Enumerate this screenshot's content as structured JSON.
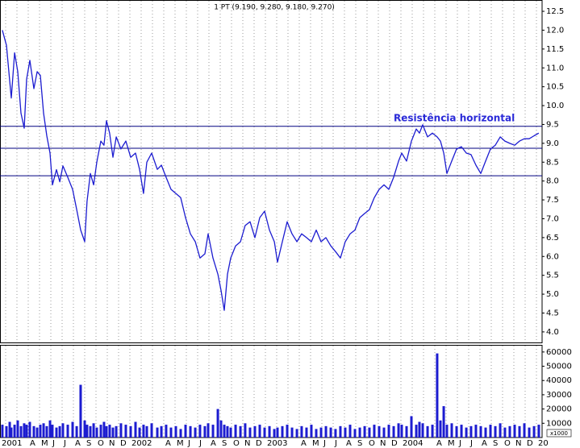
{
  "chart_data": [
    {
      "type": "line",
      "title": "1 PT (9.190, 9.280, 9.180, 9.270)",
      "color": "#1c1cd0",
      "x": [
        0.71,
        1.07,
        1.36,
        1.5,
        1.79,
        2.07,
        2.36,
        2.64,
        2.86,
        3.14,
        3.5,
        3.79,
        4.07,
        4.36,
        4.64,
        4.93,
        5.14,
        5.5,
        5.79,
        6.07,
        6.5,
        6.93,
        7.29,
        7.64,
        8.0,
        8.21,
        8.5,
        8.79,
        9.07,
        9.43,
        9.71,
        9.93,
        10.21,
        10.5,
        10.79,
        11.21,
        11.64,
        12.07,
        12.5,
        12.86,
        13.21,
        13.5,
        13.93,
        14.43,
        14.79,
        15.21,
        15.64,
        16.07,
        16.5,
        16.93,
        17.36,
        17.79,
        18.21,
        18.64,
        18.93,
        19.36,
        19.79,
        20.07,
        20.36,
        20.64,
        20.93,
        21.36,
        21.79,
        22.21,
        22.64,
        23.07,
        23.5,
        23.93,
        24.36,
        24.79,
        25.07,
        25.5,
        25.93,
        26.36,
        26.79,
        27.21,
        27.64,
        28.07,
        28.5,
        28.93,
        29.36,
        29.79,
        30.21,
        30.64,
        31.07,
        31.5,
        31.93,
        32.36,
        32.79,
        33.21,
        33.64,
        34.07,
        34.5,
        34.93,
        35.36,
        35.79,
        36.07,
        36.5,
        36.93,
        37.36,
        37.64,
        37.93,
        38.36,
        38.79,
        39.21,
        39.5,
        39.79,
        40.07,
        40.5,
        40.93,
        41.36,
        41.79,
        42.21,
        42.64,
        43.07,
        43.5,
        43.93,
        44.36,
        44.79,
        45.21,
        45.64,
        46.07,
        46.5,
        46.93,
        47.36,
        47.79,
        48.21
      ],
      "values": [
        12.0,
        11.6,
        10.66,
        10.2,
        11.4,
        10.9,
        9.8,
        9.4,
        10.7,
        11.2,
        10.45,
        10.9,
        10.8,
        9.8,
        9.2,
        8.74,
        7.9,
        8.3,
        7.98,
        8.4,
        8.1,
        7.78,
        7.24,
        6.7,
        6.39,
        7.46,
        8.2,
        7.9,
        8.5,
        9.06,
        8.95,
        9.6,
        9.27,
        8.63,
        9.17,
        8.85,
        9.06,
        8.63,
        8.74,
        8.31,
        7.67,
        8.5,
        8.74,
        8.31,
        8.42,
        8.1,
        7.78,
        7.67,
        7.56,
        7.03,
        6.6,
        6.39,
        5.96,
        6.07,
        6.6,
        5.96,
        5.53,
        5.1,
        4.57,
        5.53,
        5.96,
        6.28,
        6.39,
        6.82,
        6.92,
        6.5,
        7.03,
        7.2,
        6.7,
        6.39,
        5.85,
        6.39,
        6.92,
        6.6,
        6.39,
        6.6,
        6.5,
        6.39,
        6.7,
        6.39,
        6.5,
        6.28,
        6.13,
        5.96,
        6.39,
        6.6,
        6.7,
        7.03,
        7.14,
        7.24,
        7.56,
        7.78,
        7.9,
        7.78,
        8.1,
        8.53,
        8.74,
        8.53,
        9.06,
        9.38,
        9.27,
        9.49,
        9.17,
        9.27,
        9.17,
        9.06,
        8.74,
        8.2,
        8.53,
        8.85,
        8.91,
        8.74,
        8.7,
        8.42,
        8.2,
        8.53,
        8.85,
        8.95,
        9.17,
        9.06,
        9.0,
        8.95,
        9.06,
        9.12,
        9.12,
        9.2,
        9.27
      ],
      "xlim": [
        0.5,
        48.5
      ],
      "ylim": [
        3.72,
        12.8
      ],
      "yticks": [
        {
          "value": 4,
          "label": "4.0"
        },
        4.5,
        {
          "value": 5,
          "label": "5.0"
        },
        5.5,
        {
          "value": 6,
          "label": "6.0"
        },
        6.5,
        {
          "value": 7,
          "label": "7.0"
        },
        7.5,
        {
          "value": 8,
          "label": "8.0"
        },
        8.5,
        {
          "value": 9,
          "label": "9.0"
        },
        9.5,
        {
          "value": 10,
          "label": "10.0"
        },
        10.5,
        {
          "value": 11,
          "label": "11.0"
        },
        11.5,
        {
          "value": 12,
          "label": "12.0"
        },
        12.5
      ],
      "hlines": [
        9.45,
        8.87,
        8.14
      ],
      "hline_color": "#000080",
      "annotation": "Resistência horizontal",
      "annotation_color": "#2a2ad8"
    },
    {
      "type": "bar",
      "color": "#1c1cd0",
      "axis_note": "x1000",
      "x": [
        0.71,
        1.07,
        1.36,
        1.5,
        1.79,
        2.07,
        2.36,
        2.64,
        2.86,
        3.14,
        3.5,
        3.79,
        4.07,
        4.36,
        4.64,
        4.93,
        5.14,
        5.5,
        5.79,
        6.07,
        6.5,
        6.93,
        7.29,
        7.64,
        8.0,
        8.21,
        8.5,
        8.79,
        9.07,
        9.43,
        9.71,
        9.93,
        10.21,
        10.5,
        10.79,
        11.21,
        11.64,
        12.07,
        12.5,
        12.86,
        13.21,
        13.5,
        13.93,
        14.43,
        14.79,
        15.21,
        15.64,
        16.07,
        16.5,
        16.93,
        17.36,
        17.79,
        18.21,
        18.64,
        18.93,
        19.36,
        19.79,
        20.07,
        20.36,
        20.64,
        20.93,
        21.36,
        21.79,
        22.21,
        22.64,
        23.07,
        23.5,
        23.93,
        24.36,
        24.79,
        25.07,
        25.5,
        25.93,
        26.36,
        26.79,
        27.21,
        27.64,
        28.07,
        28.5,
        28.93,
        29.36,
        29.79,
        30.21,
        30.64,
        31.07,
        31.5,
        31.93,
        32.36,
        32.79,
        33.21,
        33.64,
        34.07,
        34.5,
        34.93,
        35.36,
        35.79,
        36.07,
        36.5,
        36.93,
        37.36,
        37.64,
        37.93,
        38.36,
        38.79,
        39.21,
        39.5,
        39.79,
        40.07,
        40.5,
        40.93,
        41.36,
        41.79,
        42.21,
        42.64,
        43.07,
        43.5,
        43.93,
        44.36,
        44.79,
        45.21,
        45.64,
        46.07,
        46.5,
        46.93,
        47.36,
        47.79,
        48.21
      ],
      "values": [
        9000,
        8000,
        11000,
        7000,
        9000,
        12000,
        8000,
        10000,
        9000,
        11000,
        8000,
        7000,
        9000,
        10000,
        8000,
        12000,
        9000,
        7000,
        8000,
        10000,
        9000,
        11000,
        8000,
        37000,
        12000,
        9000,
        8000,
        10000,
        7000,
        9000,
        11000,
        8000,
        9000,
        7000,
        8000,
        10000,
        9000,
        8000,
        11000,
        7000,
        9000,
        8000,
        10000,
        7000,
        8000,
        9000,
        7000,
        8000,
        6000,
        9000,
        8000,
        7000,
        9000,
        8000,
        10000,
        9000,
        20000,
        12000,
        9000,
        8000,
        7000,
        9000,
        8000,
        10000,
        7000,
        8000,
        9000,
        7000,
        8000,
        6000,
        7000,
        8000,
        9000,
        7000,
        6000,
        8000,
        7000,
        9000,
        6000,
        7000,
        8000,
        7000,
        6000,
        8000,
        7000,
        9000,
        6000,
        7000,
        8000,
        7000,
        9000,
        8000,
        7000,
        9000,
        8000,
        10000,
        9000,
        8000,
        15000,
        9000,
        11000,
        10000,
        8000,
        9000,
        59000,
        12000,
        22000,
        9000,
        10000,
        8000,
        9000,
        7000,
        8000,
        9000,
        8000,
        7000,
        9000,
        8000,
        10000,
        7000,
        8000,
        9000,
        8000,
        10000,
        7000,
        8000,
        9000
      ],
      "xlim": [
        0.5,
        48.5
      ],
      "ylim": [
        0,
        65000
      ],
      "yticks": [
        10000,
        20000,
        30000,
        40000,
        50000,
        60000
      ],
      "xticks": [
        {
          "value": 0,
          "label": "2001"
        },
        {
          "value": 1,
          "label": null
        },
        {
          "value": 2,
          "label": null
        },
        {
          "value": 3,
          "label": "A"
        },
        {
          "value": 4,
          "label": "M"
        },
        {
          "value": 5,
          "label": "J"
        },
        {
          "value": 6,
          "label": "J"
        },
        {
          "value": 7,
          "label": "A"
        },
        {
          "value": 8,
          "label": "S"
        },
        {
          "value": 9,
          "label": "O"
        },
        {
          "value": 10,
          "label": "N"
        },
        {
          "value": 11,
          "label": "D"
        },
        {
          "value": 12,
          "label": "2002"
        },
        {
          "value": 13,
          "label": null
        },
        {
          "value": 14,
          "label": null
        },
        {
          "value": 15,
          "label": "A"
        },
        {
          "value": 16,
          "label": "M"
        },
        {
          "value": 17,
          "label": "J"
        },
        {
          "value": 18,
          "label": "J"
        },
        {
          "value": 19,
          "label": "A"
        },
        {
          "value": 20,
          "label": "S"
        },
        {
          "value": 21,
          "label": "O"
        },
        {
          "value": 22,
          "label": "N"
        },
        {
          "value": 23,
          "label": "D"
        },
        {
          "value": 24,
          "label": "2003"
        },
        {
          "value": 25,
          "label": null
        },
        {
          "value": 26,
          "label": null
        },
        {
          "value": 27,
          "label": "A"
        },
        {
          "value": 28,
          "label": "M"
        },
        {
          "value": 29,
          "label": "J"
        },
        {
          "value": 30,
          "label": "J"
        },
        {
          "value": 31,
          "label": "A"
        },
        {
          "value": 32,
          "label": "S"
        },
        {
          "value": 33,
          "label": "O"
        },
        {
          "value": 34,
          "label": "N"
        },
        {
          "value": 35,
          "label": "D"
        },
        {
          "value": 36,
          "label": "2004"
        },
        {
          "value": 37,
          "label": null
        },
        {
          "value": 38,
          "label": null
        },
        {
          "value": 39,
          "label": "A"
        },
        {
          "value": 40,
          "label": "M"
        },
        {
          "value": 41,
          "label": "J"
        },
        {
          "value": 42,
          "label": "J"
        },
        {
          "value": 43,
          "label": "A"
        },
        {
          "value": 44,
          "label": "S"
        },
        {
          "value": 45,
          "label": "O"
        },
        {
          "value": 46,
          "label": "N"
        },
        {
          "value": 47,
          "label": "D"
        },
        {
          "value": 48,
          "label": "20"
        }
      ]
    }
  ]
}
